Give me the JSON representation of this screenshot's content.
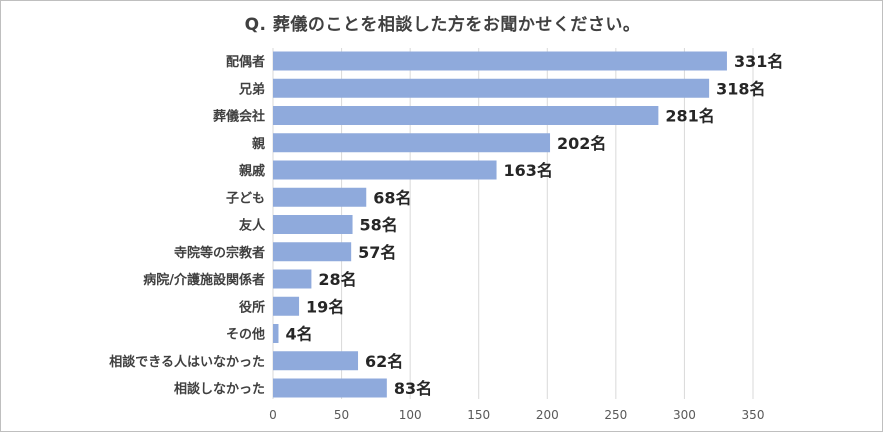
{
  "chart_data": {
    "type": "bar",
    "orientation": "horizontal",
    "title": "Q. 葬儀のことを相談した方をお聞かせください。",
    "categories": [
      "配偶者",
      "兄弟",
      "葬儀会社",
      "親",
      "親戚",
      "子ども",
      "友人",
      "寺院等の宗教者",
      "病院/介護施設関係者",
      "役所",
      "その他",
      "相談できる人はいなかった",
      "相談しなかった"
    ],
    "values": [
      331,
      318,
      281,
      202,
      163,
      68,
      58,
      57,
      28,
      19,
      4,
      62,
      83
    ],
    "value_labels": [
      "331名",
      "318名",
      "281名",
      "202名",
      "163名",
      "68名",
      "58名",
      "57名",
      "28名",
      "19名",
      "4名",
      "62名",
      "83名"
    ],
    "unit": "名",
    "xlim": [
      0,
      350
    ],
    "xticks": [
      0,
      50,
      100,
      150,
      200,
      250,
      300,
      350
    ],
    "grid": true,
    "bar_color": "#8FAADC",
    "grid_color": "#D9D9D9"
  }
}
